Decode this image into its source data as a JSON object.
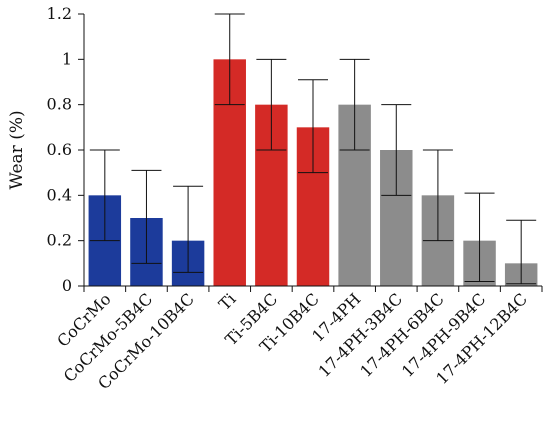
{
  "chart_data": {
    "type": "bar",
    "title": "",
    "xlabel": "",
    "ylabel": "Wear (%)",
    "ylim": [
      0,
      1.2
    ],
    "yticks": [
      "0",
      "0.2",
      "0.4",
      "0.6",
      "0.8",
      "1",
      "1.2"
    ],
    "grid": false,
    "legend": "none",
    "categories": [
      "CoCrMo",
      "CoCrMo-5B4C",
      "CoCrMo-10B4C",
      "Ti",
      "Ti-5B4C",
      "Ti-10B4C",
      "17-4PH",
      "17-4PH-3B4C",
      "17-4PH-6B4C",
      "17-4PH-9B4C",
      "17-4PH-12B4C"
    ],
    "values": [
      0.4,
      0.3,
      0.2,
      1.0,
      0.8,
      0.7,
      0.8,
      0.6,
      0.4,
      0.2,
      0.1
    ],
    "error_low": [
      0.2,
      0.1,
      0.06,
      0.8,
      0.6,
      0.5,
      0.6,
      0.4,
      0.2,
      0.02,
      0.01
    ],
    "error_high": [
      0.6,
      0.51,
      0.44,
      1.2,
      1.0,
      0.91,
      1.0,
      0.8,
      0.6,
      0.41,
      0.29
    ],
    "colors": [
      "#1c3b9b",
      "#1c3b9b",
      "#1c3b9b",
      "#d42a26",
      "#d42a26",
      "#d42a26",
      "#8c8c8c",
      "#8c8c8c",
      "#8c8c8c",
      "#8c8c8c",
      "#8c8c8c"
    ]
  }
}
